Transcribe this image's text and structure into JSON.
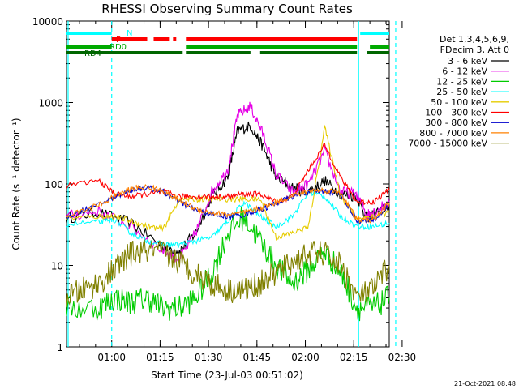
{
  "chart_data": {
    "type": "line",
    "title": "RHESSI Observing Summary Count Rates",
    "xlabel": "Start Time (23-Jul-03 00:51:02)",
    "ylabel": "Count Rate (s⁻¹ detector⁻¹)",
    "yscale": "log",
    "ylim": [
      1,
      10000
    ],
    "xlim_min": [
      -5,
      95
    ],
    "x_ticks": [
      {
        "t": 9,
        "label": "01:00"
      },
      {
        "t": 24,
        "label": "01:15"
      },
      {
        "t": 39,
        "label": "01:30"
      },
      {
        "t": 54,
        "label": "01:45"
      },
      {
        "t": 69,
        "label": "02:00"
      },
      {
        "t": 84,
        "label": "02:15"
      },
      {
        "t": 99,
        "label": "02:30"
      }
    ],
    "y_ticks": [
      {
        "v": 1,
        "label": "1"
      },
      {
        "v": 10,
        "label": "10"
      },
      {
        "v": 100,
        "label": "100"
      },
      {
        "v": 1000,
        "label": "1000"
      },
      {
        "v": 10000,
        "label": "10000"
      }
    ],
    "legend": {
      "header": [
        "Det 1,3,4,5,6,9,",
        "FDecim 3, Att 0"
      ],
      "placement": "right"
    },
    "series": [
      {
        "name": "3 - 6 keV",
        "color": "#000000",
        "x": [
          -5,
          5,
          15,
          25,
          30,
          35,
          40,
          45,
          48,
          52,
          56,
          60,
          65,
          70,
          75,
          80,
          85,
          88,
          90,
          95
        ],
        "y": [
          38,
          45,
          33,
          17,
          15,
          25,
          70,
          120,
          450,
          520,
          280,
          120,
          90,
          80,
          110,
          75,
          70,
          38,
          42,
          55
        ]
      },
      {
        "name": "6 - 12 keV",
        "color": "#e600e6",
        "x": [
          -5,
          5,
          15,
          25,
          30,
          35,
          40,
          45,
          48,
          52,
          56,
          60,
          65,
          70,
          75,
          80,
          85,
          88,
          90,
          95
        ],
        "y": [
          40,
          46,
          30,
          15,
          12,
          25,
          80,
          150,
          700,
          900,
          400,
          130,
          80,
          100,
          250,
          80,
          75,
          42,
          45,
          60
        ]
      },
      {
        "name": "12 - 25 keV",
        "color": "#00cc00",
        "x": [
          -5,
          5,
          10,
          15,
          20,
          25,
          30,
          35,
          40,
          45,
          50,
          55,
          60,
          65,
          70,
          75,
          80,
          85,
          90,
          95
        ],
        "y": [
          3,
          3,
          4,
          3.5,
          4,
          3,
          3,
          4,
          8,
          25,
          40,
          20,
          10,
          6,
          9,
          15,
          8,
          3,
          3,
          4
        ]
      },
      {
        "name": "25 - 50 keV",
        "color": "#00ffff",
        "x": [
          -5,
          5,
          10,
          15,
          20,
          25,
          30,
          35,
          40,
          45,
          50,
          55,
          60,
          65,
          70,
          75,
          80,
          85,
          90,
          95
        ],
        "y": [
          32,
          34,
          36,
          25,
          20,
          18,
          18,
          20,
          22,
          35,
          60,
          40,
          30,
          40,
          80,
          70,
          40,
          30,
          30,
          33
        ]
      },
      {
        "name": "50 - 100 keV",
        "color": "#e6cc00",
        "x": [
          -5,
          5,
          10,
          15,
          20,
          25,
          30,
          35,
          40,
          45,
          50,
          55,
          60,
          65,
          70,
          75,
          80,
          85,
          90,
          95
        ],
        "y": [
          38,
          40,
          40,
          35,
          30,
          28,
          65,
          65,
          65,
          65,
          65,
          65,
          22,
          25,
          30,
          500,
          70,
          38,
          40,
          45
        ]
      },
      {
        "name": "100 - 300 keV",
        "color": "#ff0000",
        "x": [
          -5,
          5,
          10,
          15,
          20,
          25,
          30,
          35,
          40,
          45,
          50,
          55,
          60,
          65,
          70,
          75,
          80,
          85,
          90,
          95
        ],
        "y": [
          95,
          110,
          75,
          70,
          75,
          80,
          70,
          70,
          70,
          70,
          75,
          75,
          60,
          70,
          150,
          300,
          120,
          60,
          60,
          85
        ]
      },
      {
        "name": "300 - 800 keV",
        "color": "#0000cc",
        "x": [
          -5,
          5,
          10,
          15,
          20,
          25,
          30,
          35,
          40,
          45,
          50,
          55,
          60,
          65,
          70,
          75,
          80,
          85,
          90,
          95
        ],
        "y": [
          40,
          55,
          70,
          85,
          90,
          80,
          60,
          48,
          42,
          40,
          42,
          48,
          58,
          70,
          80,
          82,
          75,
          35,
          35,
          55
        ]
      },
      {
        "name": "800 - 7000 keV",
        "color": "#ff8000",
        "x": [
          -5,
          5,
          10,
          15,
          20,
          25,
          30,
          35,
          40,
          45,
          50,
          55,
          60,
          65,
          70,
          75,
          80,
          85,
          90,
          95
        ],
        "y": [
          40,
          55,
          70,
          88,
          92,
          82,
          62,
          50,
          44,
          42,
          44,
          50,
          60,
          72,
          82,
          84,
          78,
          36,
          36,
          58
        ]
      },
      {
        "name": "7000 - 15000 keV",
        "color": "#808000",
        "x": [
          -5,
          0,
          5,
          10,
          15,
          20,
          25,
          30,
          35,
          40,
          45,
          50,
          55,
          60,
          65,
          70,
          75,
          80,
          85,
          90,
          95
        ],
        "y": [
          4,
          5,
          6,
          9,
          14,
          15,
          14,
          11,
          8,
          6,
          5,
          5,
          6,
          8,
          11,
          14,
          14,
          10,
          4,
          5,
          10
        ]
      }
    ],
    "state_bars": [
      {
        "label": "N",
        "color": "#00ffff",
        "segments": [
          [
            -5,
            9
          ],
          [
            86,
            95
          ]
        ]
      },
      {
        "label": "F",
        "color": "#ff0000",
        "segments": [
          [
            9,
            20
          ],
          [
            22,
            27
          ],
          [
            28,
            29
          ],
          [
            32,
            85
          ]
        ]
      },
      {
        "label": "RD0",
        "color": "#00aa00",
        "segments": [
          [
            -5,
            9
          ],
          [
            32,
            85
          ],
          [
            89,
            95
          ]
        ]
      },
      {
        "label": "RD4",
        "color": "#006600",
        "segments": [
          [
            -5,
            31
          ],
          [
            32,
            52
          ],
          [
            55,
            85
          ],
          [
            88,
            95
          ]
        ]
      }
    ],
    "vlines": [
      {
        "t": -4.5,
        "color": "#00ffff",
        "style": "solid"
      },
      {
        "t": 9,
        "color": "#00ffff",
        "style": "dashed"
      },
      {
        "t": 85.5,
        "color": "#00ffff",
        "style": "solid"
      },
      {
        "t": 97,
        "color": "#00ffff",
        "style": "dashed"
      }
    ],
    "footer_date": "21-Oct-2021 08:48"
  }
}
